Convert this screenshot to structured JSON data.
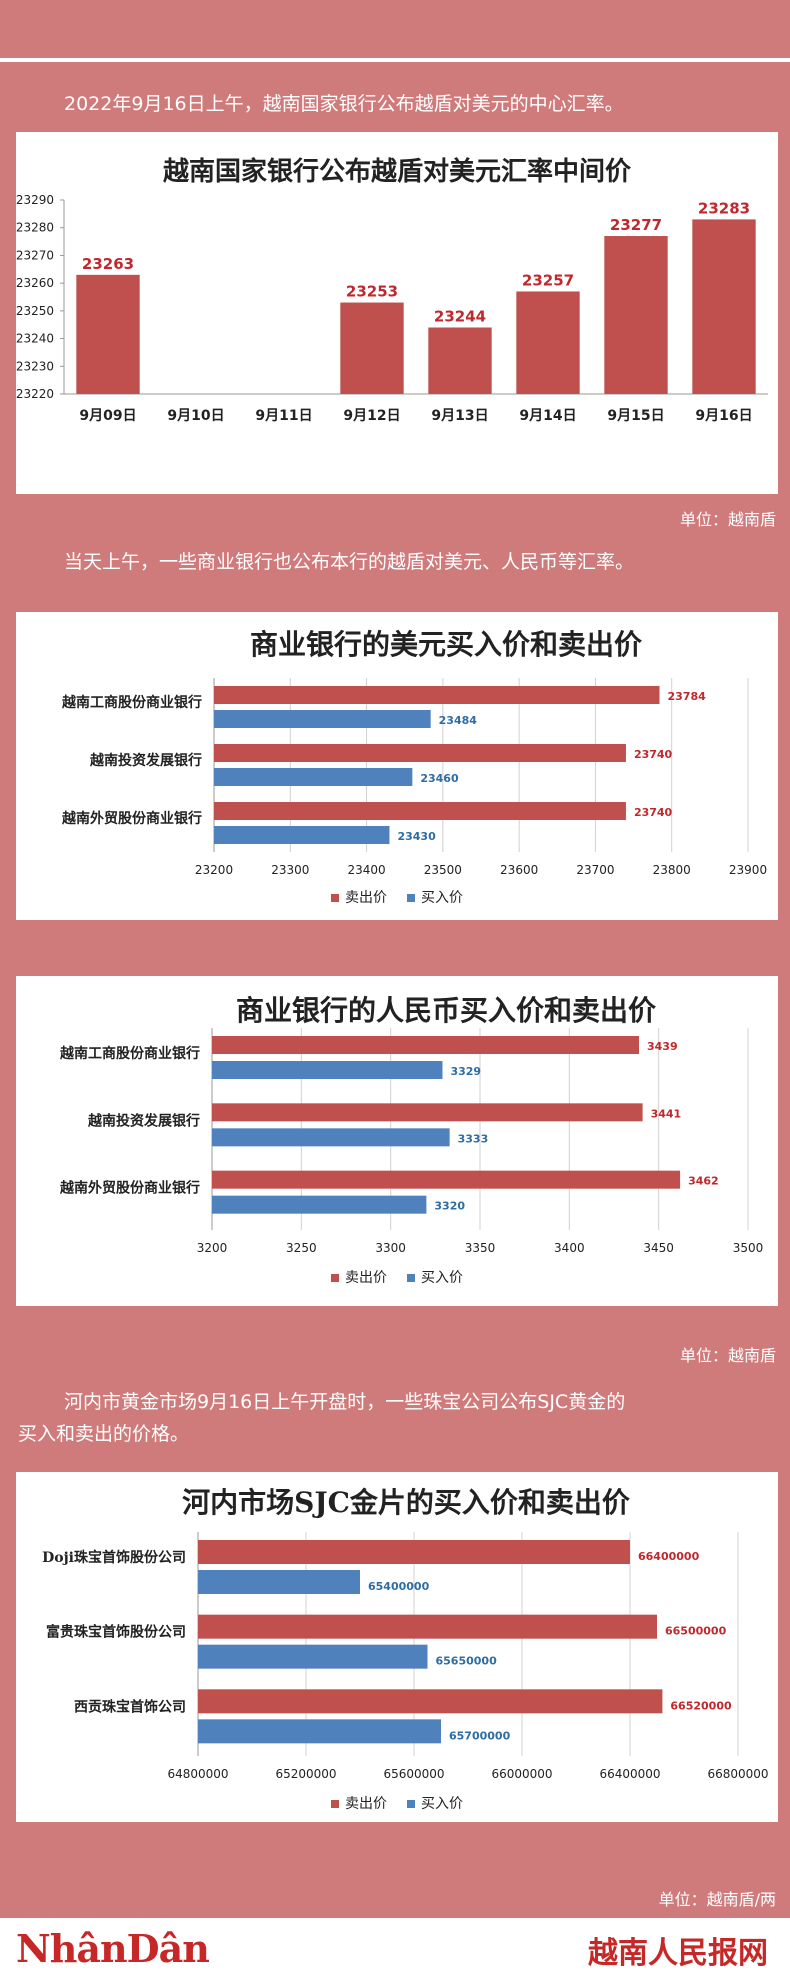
{
  "intro_text": "2022年9月16日上午，越南国家银行公布越盾对美元的中心汇率。",
  "unit_1": "单位：越南盾",
  "text_2": "当天上午，一些商业银行也公布本行的越盾对美元、人民币等汇率。",
  "unit_2": "单位：越南盾",
  "text_3a": "河内市黄金市场9月16日上午开盘时，一些珠宝公司公布SJC黄金的",
  "text_3b": "买入和卖出的价格。",
  "unit_3": "单位：越南盾/两",
  "footer": {
    "left_logo": "NhânDân",
    "right_logo": "越南人民报网"
  },
  "colors": {
    "sell": "#c0504d",
    "buy": "#4f81bd",
    "background": "#d07b7b"
  },
  "chart_data": [
    {
      "type": "bar",
      "title": "越南国家银行公布越盾对美元汇率中间价",
      "categories": [
        "9月09日",
        "9月10日",
        "9月11日",
        "9月12日",
        "9月13日",
        "9月14日",
        "9月15日",
        "9月16日"
      ],
      "values": [
        23263,
        null,
        null,
        23253,
        23244,
        23257,
        23277,
        23283
      ],
      "ylim": [
        23220,
        23290
      ],
      "yticks": [
        23220,
        23230,
        23240,
        23250,
        23260,
        23270,
        23280,
        23290
      ],
      "grid": true
    },
    {
      "type": "bar",
      "orientation": "horizontal",
      "title": "商业银行的美元买入价和卖出价",
      "categories": [
        "越南工商股份商业银行",
        "越南投资发展银行",
        "越南外贸股份商业银行"
      ],
      "series": [
        {
          "name": "卖出价",
          "values": [
            23784,
            23740,
            23740
          ]
        },
        {
          "name": "买入价",
          "values": [
            23484,
            23460,
            23430
          ]
        }
      ],
      "xlim": [
        23200,
        23900
      ],
      "xticks": [
        23200,
        23300,
        23400,
        23500,
        23600,
        23700,
        23800,
        23900
      ],
      "legend": "bottom"
    },
    {
      "type": "bar",
      "orientation": "horizontal",
      "title": "商业银行的人民币买入价和卖出价",
      "categories": [
        "越南工商股份商业银行",
        "越南投资发展银行",
        "越南外贸股份商业银行"
      ],
      "series": [
        {
          "name": "卖出价",
          "values": [
            3439,
            3441,
            3462
          ]
        },
        {
          "name": "买入价",
          "values": [
            3329,
            3333,
            3320
          ]
        }
      ],
      "xlim": [
        3200,
        3500
      ],
      "xticks": [
        3200,
        3250,
        3300,
        3350,
        3400,
        3450,
        3500
      ],
      "legend": "bottom"
    },
    {
      "type": "bar",
      "orientation": "horizontal",
      "title": "河内市场SJC金片的买入价和卖出价",
      "categories": [
        "Doji珠宝首饰股份公司",
        "富贵珠宝首饰股份公司",
        "西贡珠宝首饰公司"
      ],
      "series": [
        {
          "name": "卖出价",
          "values": [
            66400000,
            66500000,
            66520000
          ]
        },
        {
          "name": "买入价",
          "values": [
            65400000,
            65650000,
            65700000
          ]
        }
      ],
      "xlim": [
        64800000,
        66800000
      ],
      "xticks": [
        64800000,
        65200000,
        65600000,
        66000000,
        66400000,
        66800000
      ],
      "legend": "bottom"
    }
  ]
}
